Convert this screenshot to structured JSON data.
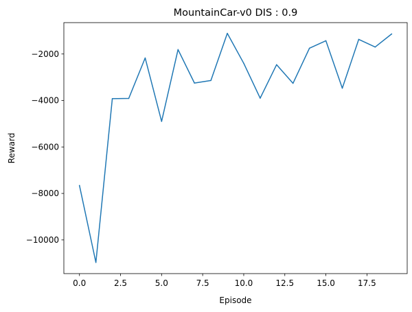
{
  "chart_data": {
    "type": "line",
    "title": "MountainCar-v0 DIS : 0.9",
    "xlabel": "Episode",
    "ylabel": "Reward",
    "xlim": [
      -0.95,
      19.95
    ],
    "ylim": [
      -11450,
      -650
    ],
    "xticks": [
      0.0,
      2.5,
      5.0,
      7.5,
      10.0,
      12.5,
      15.0,
      17.5
    ],
    "xtick_labels": [
      "0.0",
      "2.5",
      "5.0",
      "7.5",
      "10.0",
      "12.5",
      "15.0",
      "17.5"
    ],
    "yticks": [
      -10000,
      -8000,
      -6000,
      -4000,
      -2000
    ],
    "ytick_labels": [
      "−10000",
      "−8000",
      "−6000",
      "−4000",
      "−2000"
    ],
    "grid": false,
    "series": [
      {
        "color": "#1f77b4",
        "x": [
          0,
          1,
          2,
          3,
          4,
          5,
          6,
          7,
          8,
          9,
          10,
          11,
          12,
          13,
          14,
          15,
          16,
          17,
          18,
          19
        ],
        "y": [
          -7660,
          -10970,
          -3920,
          -3910,
          -2170,
          -4900,
          -1810,
          -3250,
          -3140,
          -1110,
          -2400,
          -3900,
          -2460,
          -3260,
          -1750,
          -1430,
          -3470,
          -1370,
          -1700,
          -1140
        ]
      }
    ]
  }
}
